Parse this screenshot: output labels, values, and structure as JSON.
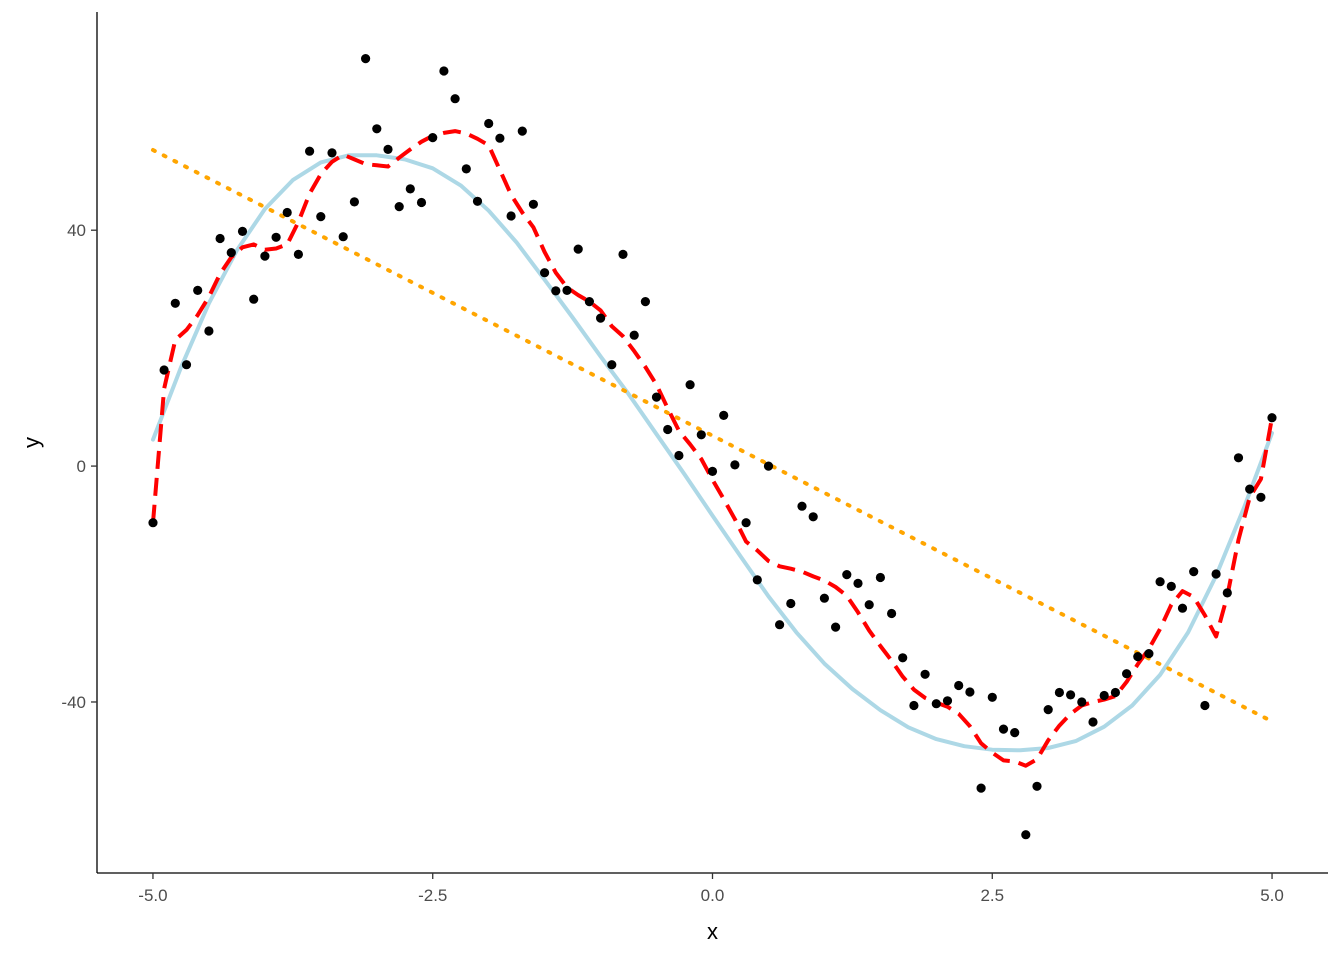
{
  "chart_data": {
    "type": "scatter",
    "xlabel": "x",
    "ylabel": "y",
    "xlim": [
      -5.5,
      5.5
    ],
    "ylim": [
      -69,
      77
    ],
    "x_ticks": [
      -5.0,
      -2.5,
      0.0,
      2.5,
      5.0
    ],
    "x_tick_labels": [
      "-5.0",
      "-2.5",
      "0.0",
      "2.5",
      "5.0"
    ],
    "y_ticks": [
      -40,
      0,
      40
    ],
    "y_tick_labels": [
      "-40",
      "0",
      "40"
    ],
    "grid": false,
    "legend": "none",
    "colors": {
      "points": "#000000",
      "linear_fit": "#FFA500",
      "polynomial_fit": "#ADD8E6",
      "smooth_fit": "#FF0000"
    },
    "series": [
      {
        "kind": "points",
        "x": [
          -5.0,
          -4.9,
          -4.8,
          -4.7,
          -4.6,
          -4.5,
          -4.4,
          -4.3,
          -4.2,
          -4.1,
          -4.0,
          -3.9,
          -3.8,
          -3.7,
          -3.6,
          -3.5,
          -3.4,
          -3.3,
          -3.2,
          -3.1,
          -3.0,
          -2.9,
          -2.8,
          -2.7,
          -2.6,
          -2.5,
          -2.4,
          -2.3,
          -2.2,
          -2.1,
          -2.0,
          -1.9,
          -1.8,
          -1.7,
          -1.6,
          -1.5,
          -1.4,
          -1.3,
          -1.2,
          -1.1,
          -1.0,
          -0.9,
          -0.8,
          -0.7,
          -0.6,
          -0.5,
          -0.4,
          -0.3,
          -0.2,
          -0.1,
          0.0,
          0.1,
          0.2,
          0.3,
          0.4,
          0.5,
          0.6,
          0.7,
          0.8,
          0.9,
          1.0,
          1.1,
          1.2,
          1.3,
          1.4,
          1.5,
          1.6,
          1.7,
          1.8,
          1.9,
          2.0,
          2.1,
          2.2,
          2.3,
          2.4,
          2.5,
          2.6,
          2.7,
          2.8,
          2.9,
          3.0,
          3.1,
          3.2,
          3.3,
          3.4,
          3.5,
          3.6,
          3.7,
          3.8,
          3.9,
          4.0,
          4.1,
          4.2,
          4.3,
          4.4,
          4.5,
          4.6,
          4.7,
          4.8,
          4.9,
          5.0
        ],
        "y": [
          -9.6,
          16.3,
          27.6,
          17.2,
          29.8,
          22.9,
          38.6,
          36.2,
          39.8,
          28.3,
          35.6,
          38.8,
          43.0,
          35.9,
          53.4,
          42.3,
          53.1,
          38.9,
          44.8,
          69.1,
          57.2,
          53.7,
          44.0,
          47.0,
          44.7,
          55.7,
          67.0,
          62.3,
          50.4,
          44.9,
          58.1,
          55.6,
          42.4,
          56.8,
          44.4,
          32.8,
          29.7,
          29.8,
          36.8,
          27.9,
          25.1,
          17.2,
          35.9,
          22.2,
          27.9,
          11.7,
          6.2,
          1.8,
          13.8,
          5.3,
          -0.9,
          8.6,
          0.2,
          -9.6,
          -19.3,
          0.0,
          -26.9,
          -23.3,
          -6.8,
          -8.6,
          -22.4,
          -27.3,
          -18.4,
          -19.9,
          -23.5,
          -18.9,
          -25.0,
          -32.5,
          -40.6,
          -35.3,
          -40.3,
          -39.8,
          -37.2,
          -38.3,
          -54.6,
          -39.2,
          -44.6,
          -45.2,
          -62.5,
          -54.3,
          -41.3,
          -38.4,
          -38.8,
          -40.0,
          -43.4,
          -38.9,
          -38.4,
          -35.2,
          -32.3,
          -31.8,
          -19.6,
          -20.4,
          -24.1,
          -17.9,
          -40.6,
          -18.3,
          -21.5,
          1.4,
          -3.9,
          -5.3,
          8.2
        ]
      },
      {
        "kind": "linear_fit",
        "line_style": "dotted",
        "x": [
          -5.0,
          5.0
        ],
        "y": [
          53.6,
          -43.3
        ]
      },
      {
        "kind": "polynomial_fit",
        "line_style": "solid",
        "x": [
          -5.0,
          -4.75,
          -4.5,
          -4.25,
          -4.0,
          -3.75,
          -3.5,
          -3.25,
          -3.0,
          -2.75,
          -2.5,
          -2.25,
          -2.0,
          -1.75,
          -1.5,
          -1.25,
          -1.0,
          -0.75,
          -0.5,
          -0.25,
          0.0,
          0.25,
          0.5,
          0.75,
          1.0,
          1.25,
          1.5,
          1.75,
          2.0,
          2.25,
          2.5,
          2.75,
          3.0,
          3.25,
          3.5,
          3.75,
          4.0,
          4.25,
          4.5,
          4.75,
          5.0
        ],
        "y": [
          4.5,
          16.7,
          27.6,
          36.6,
          43.6,
          48.5,
          51.5,
          52.7,
          52.7,
          52.0,
          50.5,
          47.6,
          43.3,
          37.9,
          31.6,
          25.2,
          18.6,
          12.2,
          5.4,
          -1.4,
          -8.4,
          -15.3,
          -22.1,
          -28.2,
          -33.5,
          -37.8,
          -41.4,
          -44.3,
          -46.3,
          -47.5,
          -48.1,
          -48.2,
          -47.8,
          -46.6,
          -44.2,
          -40.6,
          -35.4,
          -28.2,
          -18.6,
          -7.0,
          5.6
        ]
      },
      {
        "kind": "smooth_fit",
        "line_style": "dashed",
        "x": [
          -5.0,
          -4.9,
          -4.8,
          -4.7,
          -4.6,
          -4.5,
          -4.4,
          -4.3,
          -4.2,
          -4.1,
          -4.0,
          -3.9,
          -3.8,
          -3.7,
          -3.6,
          -3.5,
          -3.4,
          -3.3,
          -3.2,
          -3.1,
          -3.0,
          -2.9,
          -2.8,
          -2.7,
          -2.6,
          -2.5,
          -2.4,
          -2.3,
          -2.2,
          -2.1,
          -2.0,
          -1.9,
          -1.8,
          -1.7,
          -1.6,
          -1.5,
          -1.4,
          -1.3,
          -1.2,
          -1.1,
          -1.0,
          -0.9,
          -0.8,
          -0.7,
          -0.6,
          -0.5,
          -0.4,
          -0.3,
          -0.2,
          -0.1,
          0.0,
          0.1,
          0.2,
          0.3,
          0.4,
          0.5,
          0.6,
          0.7,
          0.8,
          0.9,
          1.0,
          1.1,
          1.2,
          1.3,
          1.4,
          1.5,
          1.6,
          1.7,
          1.8,
          1.9,
          2.0,
          2.1,
          2.2,
          2.3,
          2.4,
          2.5,
          2.6,
          2.7,
          2.8,
          2.9,
          3.0,
          3.1,
          3.2,
          3.3,
          3.4,
          3.5,
          3.6,
          3.7,
          3.8,
          3.9,
          4.0,
          4.1,
          4.2,
          4.3,
          4.4,
          4.5,
          4.6,
          4.7,
          4.8,
          4.9,
          5.0
        ],
        "y": [
          -9.6,
          13.1,
          21.4,
          23.1,
          25.6,
          28.7,
          32.6,
          35.4,
          37.1,
          37.6,
          36.7,
          36.9,
          37.6,
          41.4,
          46.2,
          49.5,
          51.6,
          52.8,
          52.0,
          51.2,
          51.0,
          50.8,
          52.3,
          53.7,
          55.0,
          56.0,
          56.5,
          56.8,
          56.4,
          55.5,
          54.4,
          50.2,
          46.0,
          43.0,
          40.5,
          36.3,
          32.8,
          30.3,
          29.0,
          27.9,
          26.4,
          23.7,
          22.0,
          19.5,
          16.8,
          13.8,
          9.8,
          6.0,
          3.7,
          1.2,
          -2.3,
          -5.6,
          -9.0,
          -12.8,
          -14.3,
          -16.1,
          -17.0,
          -17.4,
          -17.9,
          -18.7,
          -19.4,
          -20.5,
          -22.0,
          -24.8,
          -27.9,
          -30.5,
          -33.0,
          -35.7,
          -37.9,
          -39.3,
          -40.1,
          -40.8,
          -42.0,
          -44.1,
          -47.0,
          -48.6,
          -49.9,
          -50.1,
          -50.8,
          -49.7,
          -46.5,
          -44.0,
          -42.0,
          -40.6,
          -40.0,
          -39.6,
          -39.0,
          -36.6,
          -33.6,
          -31.0,
          -27.6,
          -23.5,
          -21.2,
          -22.2,
          -25.3,
          -28.9,
          -22.0,
          -12.5,
          -5.3,
          -2.2,
          8.2
        ]
      }
    ]
  }
}
